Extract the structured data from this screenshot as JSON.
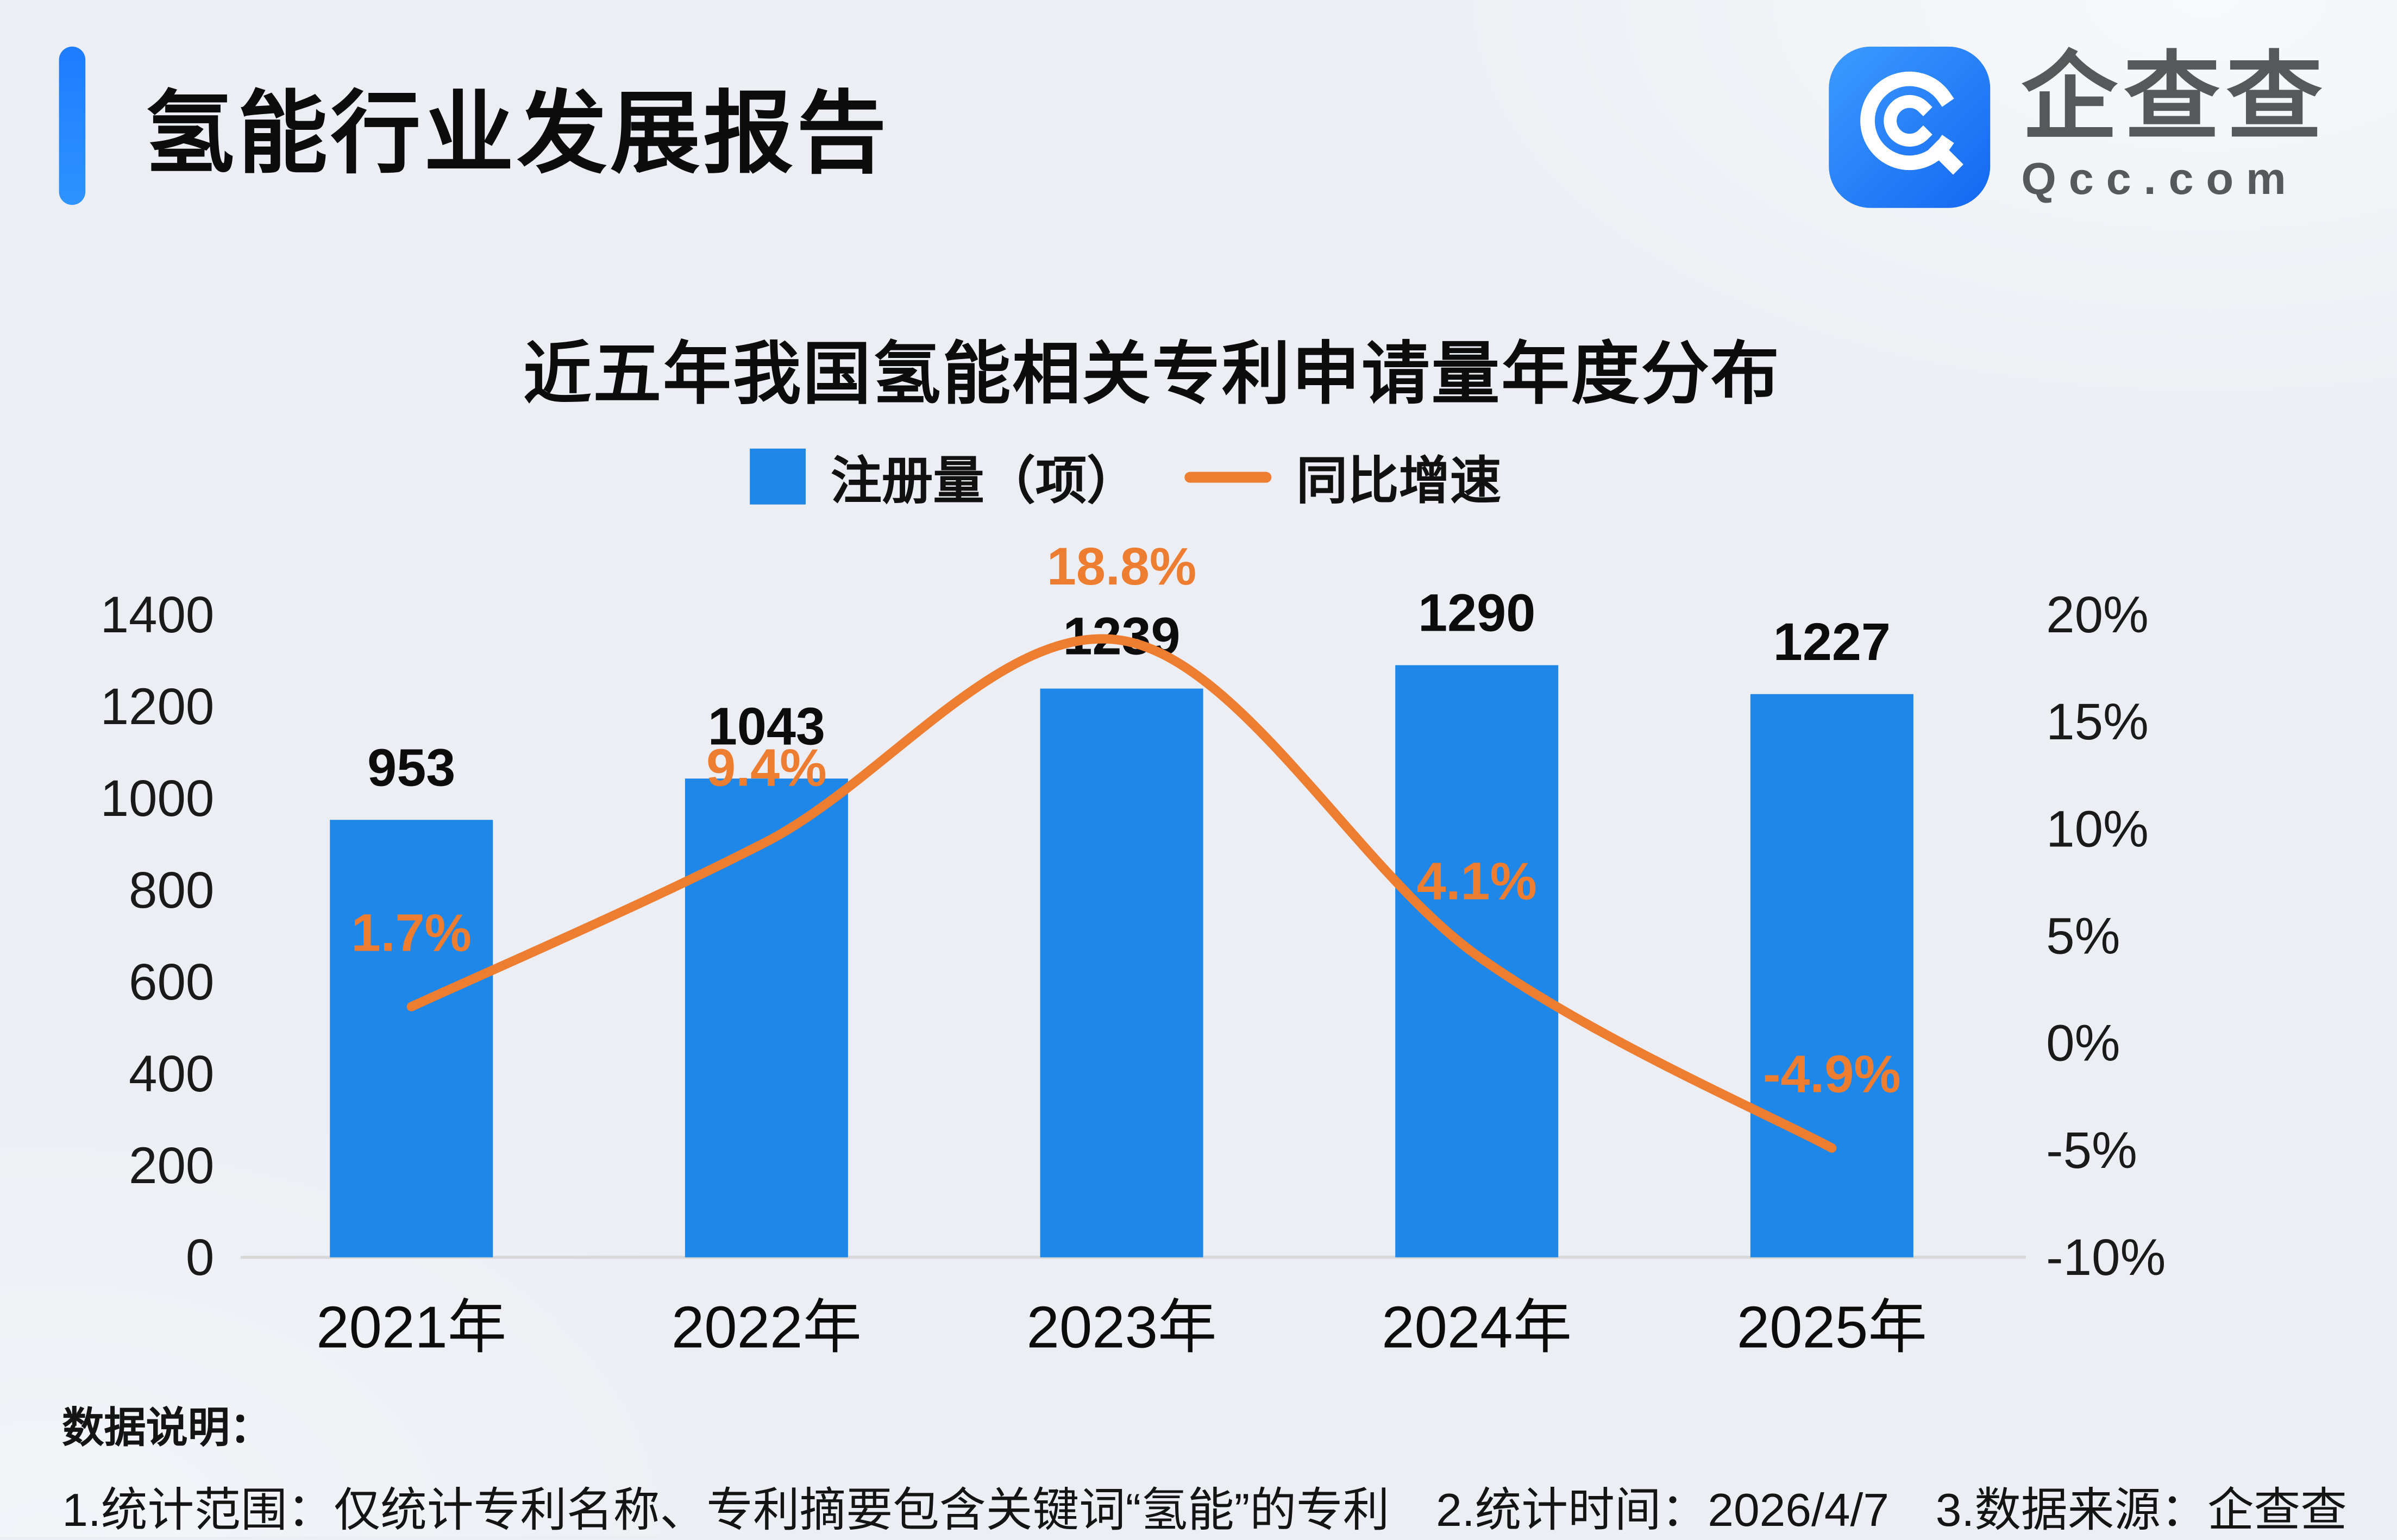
{
  "header": {
    "title": "氢能行业发展报告",
    "logo": {
      "brand": "企查查",
      "domain": "Qcc.com",
      "icon": "qcc-magnifier-icon",
      "icon_color": "#1E7BFF"
    }
  },
  "chart_data": {
    "type": "bar",
    "combo": "bar+line",
    "title": "近五年我国氢能相关专利申请量年度分布",
    "categories": [
      "2021年",
      "2022年",
      "2023年",
      "2024年",
      "2025年"
    ],
    "series": [
      {
        "name": "注册量（项）",
        "type": "bar",
        "axis": "left",
        "color": "#1F87E8",
        "values": [
          953,
          1043,
          1239,
          1290,
          1227
        ]
      },
      {
        "name": "同比增速",
        "type": "line",
        "axis": "right",
        "color": "#ED7D31",
        "values": [
          1.7,
          9.4,
          18.8,
          4.1,
          -4.9
        ],
        "labels": [
          "1.7%",
          "9.4%",
          "18.8%",
          "4.1%",
          "-4.9%"
        ]
      }
    ],
    "left_axis": {
      "min": 0,
      "max": 1400,
      "step": 200,
      "tick_labels": [
        "0",
        "200",
        "400",
        "600",
        "800",
        "1000",
        "1200",
        "1400"
      ]
    },
    "right_axis": {
      "min": -10,
      "max": 20,
      "step": 5,
      "unit": "%",
      "tick_labels": [
        "-10%",
        "-5%",
        "0%",
        "5%",
        "10%",
        "15%",
        "20%"
      ]
    },
    "legend_position": "top",
    "grid": false
  },
  "footer": {
    "heading": "数据说明：",
    "notes": "1.统计范围：仅统计专利名称、专利摘要包含关键词“氢能”的专利　2.统计时间：2026/4/7　3.数据来源：企查查"
  }
}
